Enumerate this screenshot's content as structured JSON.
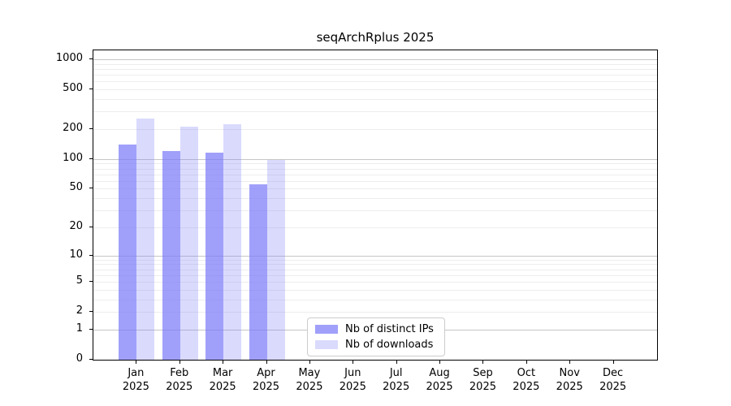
{
  "chart_data": {
    "type": "bar",
    "title": "seqArchRplus 2025",
    "categories": [
      "Jan",
      "Feb",
      "Mar",
      "Apr",
      "May",
      "Jun",
      "Jul",
      "Aug",
      "Sep",
      "Oct",
      "Nov",
      "Dec"
    ],
    "year_label": "2025",
    "series": [
      {
        "name": "Nb of distinct IPs",
        "color": "#7b7bf8",
        "alpha": 0.72,
        "values": [
          140,
          120,
          115,
          55,
          0,
          0,
          0,
          0,
          0,
          0,
          0,
          0
        ]
      },
      {
        "name": "Nb of downloads",
        "color": "#7b7bf8",
        "alpha": 0.28,
        "values": [
          255,
          210,
          225,
          97,
          0,
          0,
          0,
          0,
          0,
          0,
          0,
          0
        ]
      }
    ],
    "yticks": [
      0,
      1,
      2,
      5,
      10,
      20,
      50,
      100,
      200,
      500,
      1000
    ],
    "ylim": [
      0,
      1000
    ],
    "scale": "log1p",
    "grid": {
      "major_ticks": [
        1,
        10,
        100,
        1000
      ],
      "major_color": "#c6c6c6",
      "minor_color": "#ededed"
    },
    "legend": {
      "position": "bottom-center",
      "border_color": "#cccccc"
    },
    "bar_color_on_white": {
      "distinct_ips": "#a2a2fa",
      "downloads": "#d9d9fc"
    }
  }
}
